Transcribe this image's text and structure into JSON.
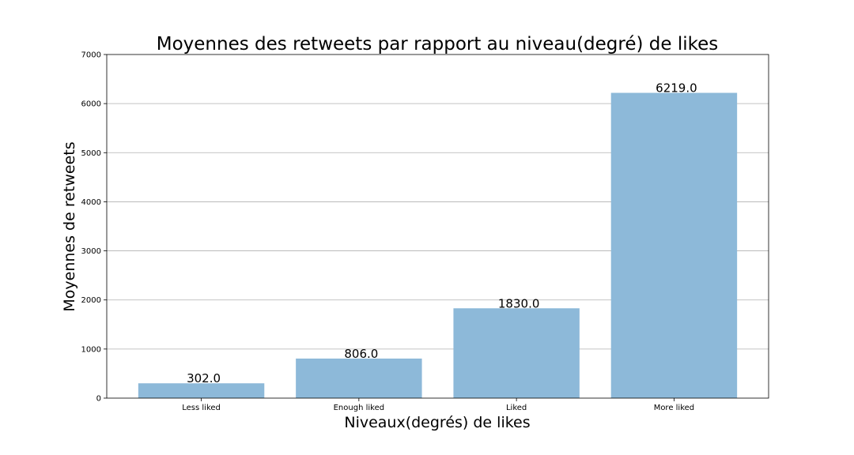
{
  "chart_data": {
    "type": "bar",
    "title": "Moyennes des retweets par rapport au niveau(degré) de likes",
    "xlabel": "Niveaux(degrés) de likes",
    "ylabel": "Moyennes de retweets",
    "categories": [
      "Less liked",
      "Enough liked",
      "Liked",
      "More liked"
    ],
    "values": [
      302.0,
      806.0,
      1830.0,
      6219.0
    ],
    "value_labels": [
      "302.0",
      "806.0",
      "1830.0",
      "6219.0"
    ],
    "ylim": [
      0,
      7000
    ],
    "yticks": [
      0,
      1000,
      2000,
      3000,
      4000,
      5000,
      6000,
      7000
    ],
    "ytick_labels": [
      "0",
      "1000",
      "2000",
      "3000",
      "4000",
      "5000",
      "6000",
      "7000"
    ],
    "grid": "y",
    "bar_color": "#8db9d9"
  }
}
